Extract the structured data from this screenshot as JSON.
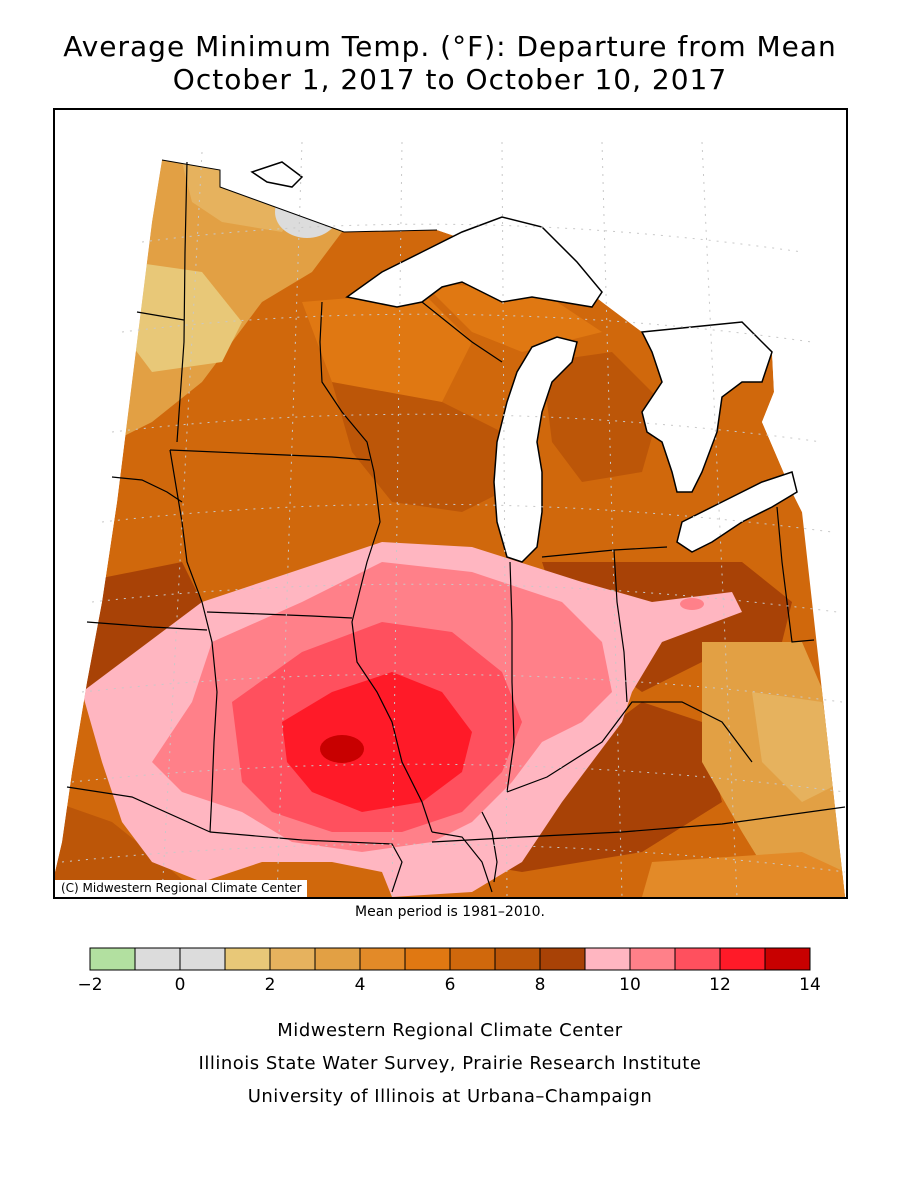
{
  "title_line1": "Average Minimum Temp. (°F): Departure from Mean",
  "title_line2": "October 1, 2017 to October 10, 2017",
  "copyright": "(C) Midwestern Regional Climate Center",
  "mean_period": "Mean period is 1981–2010.",
  "legend": {
    "unit": "°F",
    "bins": [
      {
        "from": -2,
        "to": -1,
        "color": "#b2e0a0"
      },
      {
        "from": -1,
        "to": 0,
        "color": "#dcdcdc"
      },
      {
        "from": 0,
        "to": 1,
        "color": "#dcdcdc"
      },
      {
        "from": 1,
        "to": 2,
        "color": "#e8c878"
      },
      {
        "from": 2,
        "to": 3,
        "color": "#e6b25e"
      },
      {
        "from": 3,
        "to": 4,
        "color": "#e2a044"
      },
      {
        "from": 4,
        "to": 5,
        "color": "#e38a28"
      },
      {
        "from": 5,
        "to": 6,
        "color": "#e07812"
      },
      {
        "from": 6,
        "to": 7,
        "color": "#d0680c"
      },
      {
        "from": 7,
        "to": 8,
        "color": "#bc5608"
      },
      {
        "from": 8,
        "to": 9,
        "color": "#a84206"
      },
      {
        "from": 9,
        "to": 10,
        "color": "#ffb6c1"
      },
      {
        "from": 10,
        "to": 11,
        "color": "#ff8089"
      },
      {
        "from": 11,
        "to": 12,
        "color": "#ff505e"
      },
      {
        "from": 12,
        "to": 13,
        "color": "#ff1a28"
      },
      {
        "from": 13,
        "to": 14,
        "color": "#c80000"
      }
    ],
    "tick_labels": [
      "−2",
      "0",
      "2",
      "4",
      "6",
      "8",
      "10",
      "12",
      "14"
    ],
    "tick_values": [
      -2,
      0,
      2,
      4,
      6,
      8,
      10,
      12,
      14
    ]
  },
  "credits": [
    "Midwestern Regional Climate Center",
    "Illinois State Water Survey, Prairie Research Institute",
    "University of Illinois at Urbana–Champaign"
  ],
  "colors": {
    "lakes": "#ffffff",
    "outside": "#ffffff",
    "border": "#000000"
  }
}
